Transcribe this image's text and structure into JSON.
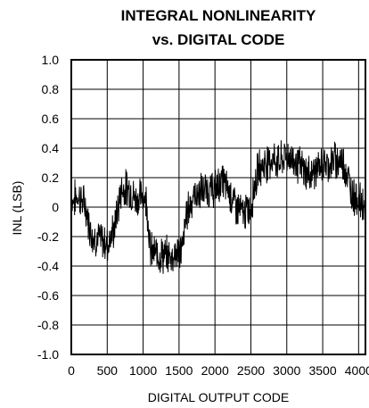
{
  "chart_data": {
    "type": "line",
    "title": "INTEGRAL NONLINEARITY",
    "subtitle": "vs. DIGITAL CODE",
    "xlabel": "DIGITAL OUTPUT CODE",
    "ylabel": "INL (LSB)",
    "xlim": [
      0,
      4095
    ],
    "ylim": [
      -1.0,
      1.0
    ],
    "xticks": [
      0,
      500,
      1000,
      1500,
      2000,
      2500,
      3000,
      3500,
      4000
    ],
    "xtick_labels": [
      "0",
      "500",
      "1000",
      "1500",
      "2000",
      "2500",
      "3000",
      "3500",
      "4000"
    ],
    "yticks": [
      1.0,
      0.8,
      0.6,
      0.4,
      0.2,
      0,
      -0.2,
      -0.4,
      -0.6,
      -0.8,
      -1.0
    ],
    "ytick_labels": [
      "1.0",
      "0.8",
      "0.6",
      "0.4",
      "0.2",
      "0",
      "-0.2",
      "-0.4",
      "-0.6",
      "-0.8",
      "-1.0"
    ],
    "grid": true,
    "legend": "none",
    "line_color": "#000000",
    "series": [
      {
        "x": [
          0,
          100,
          200,
          250,
          300,
          400,
          500,
          600,
          650,
          700,
          800,
          900,
          1000,
          1050,
          1100,
          1200,
          1300,
          1400,
          1500,
          1550,
          1600,
          1700,
          1800,
          1900,
          2000,
          2100,
          2200,
          2300,
          2400,
          2500,
          2550,
          2600,
          2700,
          2800,
          2900,
          3000,
          3100,
          3200,
          3300,
          3400,
          3500,
          3600,
          3700,
          3800,
          3900,
          4000,
          4095
        ],
        "y": [
          0.03,
          0.08,
          0.0,
          -0.12,
          -0.2,
          -0.22,
          -0.25,
          -0.15,
          0.0,
          0.12,
          0.13,
          0.05,
          0.08,
          0.05,
          -0.3,
          -0.32,
          -0.33,
          -0.33,
          -0.3,
          -0.28,
          -0.05,
          0.08,
          0.1,
          0.12,
          0.12,
          0.18,
          0.1,
          0.0,
          -0.05,
          0.0,
          0.15,
          0.25,
          0.3,
          0.33,
          0.3,
          0.35,
          0.32,
          0.27,
          0.22,
          0.25,
          0.28,
          0.3,
          0.32,
          0.3,
          0.1,
          0.05,
          0.0
        ]
      }
    ]
  }
}
